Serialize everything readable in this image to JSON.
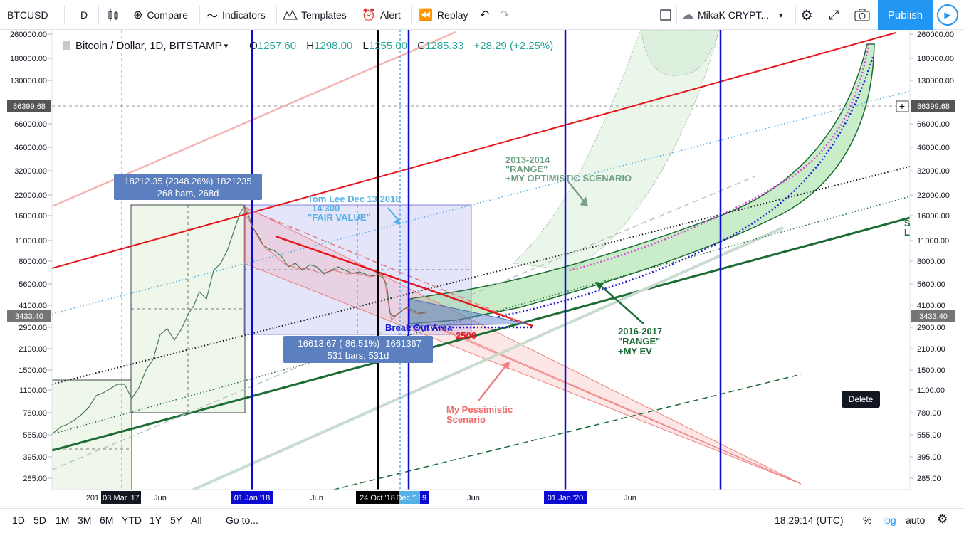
{
  "toolbar": {
    "symbol": "BTCUSD",
    "interval": "D",
    "compare": "Compare",
    "indicators": "Indicators",
    "templates": "Templates",
    "alert": "Alert",
    "replay": "Replay",
    "layout_name": "MikaK CRYPT...",
    "publish": "Publish"
  },
  "legend": {
    "title": "Bitcoin / Dollar, 1D, BITSTAMP",
    "open_k": "O",
    "open_v": "1257.60",
    "high_k": "H",
    "high_v": "1298.00",
    "low_k": "L",
    "low_v": "1255.00",
    "close_k": "C",
    "close_v": "1285.33",
    "change": "+28.29 (+2.25%)"
  },
  "price_axis": {
    "ticks": [
      "260000.00",
      "180000.00",
      "130000.00",
      "66000.00",
      "46000.00",
      "32000.00",
      "22000.00",
      "16000.00",
      "11000.00",
      "8000.00",
      "5600.00",
      "4100.00",
      "2900.00",
      "2100.00",
      "1500.00",
      "1100.00",
      "780.00",
      "555.00",
      "395.00",
      "285.00"
    ],
    "crosshair_label": "86399.68",
    "last_price_label": "3433.40"
  },
  "time_axis": {
    "labels": [
      "201",
      "Jun",
      "Jun",
      "Jun",
      "Jun"
    ],
    "marker_mar17": "03 Mar '17",
    "marker_jan18": "01 Jan '18",
    "marker_oct18": "24 Oct '18",
    "marker_dec18": "Dec '18",
    "marker_9": "9",
    "marker_jan20": "01 Jan '20"
  },
  "measure_up": {
    "line1": "18212.35 (2348.26%) 1821235",
    "line2": "268 bars, 268d"
  },
  "measure_down": {
    "line1": "-16613.67 (-86.51%) -1661367",
    "line2": "531 bars, 531d"
  },
  "annotations": {
    "tom_lee_1": "Tom Lee Dec 13 2018",
    "tom_lee_2": "14'300",
    "tom_lee_3": "\"FAIR VALUE\"",
    "optimistic_1": "2013-2014",
    "optimistic_2": "\"RANGE\"",
    "optimistic_3": "+MY OPTIMISTIC SCENARIO",
    "breakout": "Break Out Area",
    "level_2500": "2500",
    "ev_1": "2016-2017",
    "ev_2": "\"RANGE\"",
    "ev_3": "+MY EV",
    "pessimistic_1": "My Pessimistic",
    "pessimistic_2": "Scenario",
    "edge_s": "S",
    "edge_l": "L"
  },
  "tooltip": {
    "delete": "Delete"
  },
  "bottombar": {
    "ranges": [
      "1D",
      "5D",
      "1M",
      "3M",
      "6M",
      "YTD",
      "1Y",
      "5Y",
      "All"
    ],
    "goto": "Go to...",
    "clock": "18:29:14 (UTC)",
    "percent": "%",
    "log": "log",
    "auto": "auto"
  },
  "colors": {
    "accent": "#2196f3",
    "up": "#26a69a",
    "down": "#ef5350",
    "blue_vline": "#0a0ad0",
    "red_channel": "#e8151a",
    "green_channel": "#1b6b35"
  }
}
